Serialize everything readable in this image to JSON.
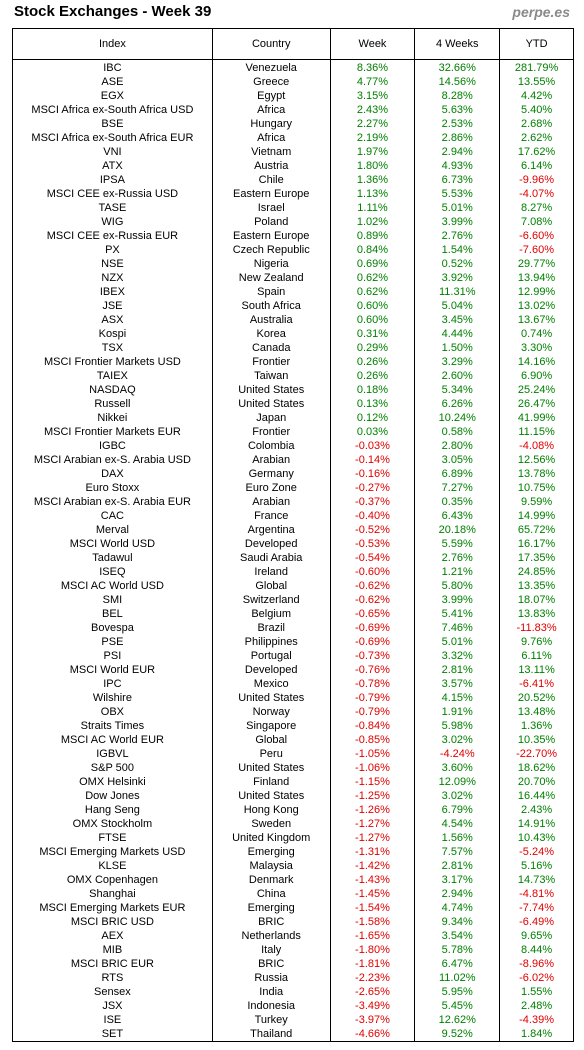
{
  "header": {
    "title": "Stock Exchanges - Week 39",
    "source": "perpe.es"
  },
  "table": {
    "columns": [
      "Index",
      "Country",
      "Week",
      "4 Weeks",
      "YTD"
    ],
    "rows": [
      [
        "IBC",
        "Venezuela",
        "8.36%",
        "32.66%",
        "281.79%"
      ],
      [
        "ASE",
        "Greece",
        "4.77%",
        "14.56%",
        "13.55%"
      ],
      [
        "EGX",
        "Egypt",
        "3.15%",
        "8.28%",
        "4.42%"
      ],
      [
        "MSCI Africa ex-South Africa USD",
        "Africa",
        "2.43%",
        "5.63%",
        "5.40%"
      ],
      [
        "BSE",
        "Hungary",
        "2.27%",
        "2.53%",
        "2.68%"
      ],
      [
        "MSCI Africa ex-South Africa EUR",
        "Africa",
        "2.19%",
        "2.86%",
        "2.62%"
      ],
      [
        "VNI",
        "Vietnam",
        "1.97%",
        "2.94%",
        "17.62%"
      ],
      [
        "ATX",
        "Austria",
        "1.80%",
        "4.93%",
        "6.14%"
      ],
      [
        "IPSA",
        "Chile",
        "1.36%",
        "6.73%",
        "-9.96%"
      ],
      [
        "MSCI CEE ex-Russia USD",
        "Eastern Europe",
        "1.13%",
        "5.53%",
        "-4.07%"
      ],
      [
        "TASE",
        "Israel",
        "1.11%",
        "5.01%",
        "8.27%"
      ],
      [
        "WIG",
        "Poland",
        "1.02%",
        "3.99%",
        "7.08%"
      ],
      [
        "MSCI CEE ex-Russia EUR",
        "Eastern Europe",
        "0.89%",
        "2.76%",
        "-6.60%"
      ],
      [
        "PX",
        "Czech Republic",
        "0.84%",
        "1.54%",
        "-7.60%"
      ],
      [
        "NSE",
        "Nigeria",
        "0.69%",
        "0.52%",
        "29.77%"
      ],
      [
        "NZX",
        "New Zealand",
        "0.62%",
        "3.92%",
        "13.94%"
      ],
      [
        "IBEX",
        "Spain",
        "0.62%",
        "11.31%",
        "12.99%"
      ],
      [
        "JSE",
        "South Africa",
        "0.60%",
        "5.04%",
        "13.02%"
      ],
      [
        "ASX",
        "Australia",
        "0.60%",
        "3.45%",
        "13.67%"
      ],
      [
        "Kospi",
        "Korea",
        "0.31%",
        "4.44%",
        "0.74%"
      ],
      [
        "TSX",
        "Canada",
        "0.29%",
        "1.50%",
        "3.30%"
      ],
      [
        "MSCI Frontier Markets USD",
        "Frontier",
        "0.26%",
        "3.29%",
        "14.16%"
      ],
      [
        "TAIEX",
        "Taiwan",
        "0.26%",
        "2.60%",
        "6.90%"
      ],
      [
        "NASDAQ",
        "United States",
        "0.18%",
        "5.34%",
        "25.24%"
      ],
      [
        "Russell",
        "United States",
        "0.13%",
        "6.26%",
        "26.47%"
      ],
      [
        "Nikkei",
        "Japan",
        "0.12%",
        "10.24%",
        "41.99%"
      ],
      [
        "MSCI Frontier Markets EUR",
        "Frontier",
        "0.03%",
        "0.58%",
        "11.15%"
      ],
      [
        "IGBC",
        "Colombia",
        "-0.03%",
        "2.80%",
        "-4.08%"
      ],
      [
        "MSCI Arabian ex-S. Arabia USD",
        "Arabian",
        "-0.14%",
        "3.05%",
        "12.56%"
      ],
      [
        "DAX",
        "Germany",
        "-0.16%",
        "6.89%",
        "13.78%"
      ],
      [
        "Euro Stoxx",
        "Euro Zone",
        "-0.27%",
        "7.27%",
        "10.75%"
      ],
      [
        "MSCI Arabian ex-S. Arabia EUR",
        "Arabian",
        "-0.37%",
        "0.35%",
        "9.59%"
      ],
      [
        "CAC",
        "France",
        "-0.40%",
        "6.43%",
        "14.99%"
      ],
      [
        "Merval",
        "Argentina",
        "-0.52%",
        "20.18%",
        "65.72%"
      ],
      [
        "MSCI World USD",
        "Developed",
        "-0.53%",
        "5.59%",
        "16.17%"
      ],
      [
        "Tadawul",
        "Saudi Arabia",
        "-0.54%",
        "2.76%",
        "17.35%"
      ],
      [
        "ISEQ",
        "Ireland",
        "-0.60%",
        "1.21%",
        "24.85%"
      ],
      [
        "MSCI AC World USD",
        "Global",
        "-0.62%",
        "5.80%",
        "13.35%"
      ],
      [
        "SMI",
        "Switzerland",
        "-0.62%",
        "3.99%",
        "18.07%"
      ],
      [
        "BEL",
        "Belgium",
        "-0.65%",
        "5.41%",
        "13.83%"
      ],
      [
        "Bovespa",
        "Brazil",
        "-0.69%",
        "7.46%",
        "-11.83%"
      ],
      [
        "PSE",
        "Philippines",
        "-0.69%",
        "5.01%",
        "9.76%"
      ],
      [
        "PSI",
        "Portugal",
        "-0.73%",
        "3.32%",
        "6.11%"
      ],
      [
        "MSCI World EUR",
        "Developed",
        "-0.76%",
        "2.81%",
        "13.11%"
      ],
      [
        "IPC",
        "Mexico",
        "-0.78%",
        "3.57%",
        "-6.41%"
      ],
      [
        "Wilshire",
        "United States",
        "-0.79%",
        "4.15%",
        "20.52%"
      ],
      [
        "OBX",
        "Norway",
        "-0.79%",
        "1.91%",
        "13.48%"
      ],
      [
        "Straits Times",
        "Singapore",
        "-0.84%",
        "5.98%",
        "1.36%"
      ],
      [
        "MSCI AC World EUR",
        "Global",
        "-0.85%",
        "3.02%",
        "10.35%"
      ],
      [
        "IGBVL",
        "Peru",
        "-1.05%",
        "-4.24%",
        "-22.70%"
      ],
      [
        "S&P 500",
        "United States",
        "-1.06%",
        "3.60%",
        "18.62%"
      ],
      [
        "OMX Helsinki",
        "Finland",
        "-1.15%",
        "12.09%",
        "20.70%"
      ],
      [
        "Dow Jones",
        "United States",
        "-1.25%",
        "3.02%",
        "16.44%"
      ],
      [
        "Hang Seng",
        "Hong Kong",
        "-1.26%",
        "6.79%",
        "2.43%"
      ],
      [
        "OMX Stockholm",
        "Sweden",
        "-1.27%",
        "4.54%",
        "14.91%"
      ],
      [
        "FTSE",
        "United Kingdom",
        "-1.27%",
        "1.56%",
        "10.43%"
      ],
      [
        "MSCI Emerging Markets USD",
        "Emerging",
        "-1.31%",
        "7.57%",
        "-5.24%"
      ],
      [
        "KLSE",
        "Malaysia",
        "-1.42%",
        "2.81%",
        "5.16%"
      ],
      [
        "OMX Copenhagen",
        "Denmark",
        "-1.43%",
        "3.17%",
        "14.73%"
      ],
      [
        "Shanghai",
        "China",
        "-1.45%",
        "2.94%",
        "-4.81%"
      ],
      [
        "MSCI Emerging Markets EUR",
        "Emerging",
        "-1.54%",
        "4.74%",
        "-7.74%"
      ],
      [
        "MSCI BRIC USD",
        "BRIC",
        "-1.58%",
        "9.34%",
        "-6.49%"
      ],
      [
        "AEX",
        "Netherlands",
        "-1.65%",
        "3.54%",
        "9.65%"
      ],
      [
        "MIB",
        "Italy",
        "-1.80%",
        "5.78%",
        "8.44%"
      ],
      [
        "MSCI BRIC EUR",
        "BRIC",
        "-1.81%",
        "6.47%",
        "-8.96%"
      ],
      [
        "RTS",
        "Russia",
        "-2.23%",
        "11.02%",
        "-6.02%"
      ],
      [
        "Sensex",
        "India",
        "-2.65%",
        "5.95%",
        "1.55%"
      ],
      [
        "JSX",
        "Indonesia",
        "-3.49%",
        "5.45%",
        "2.48%"
      ],
      [
        "ISE",
        "Turkey",
        "-3.97%",
        "12.62%",
        "-4.39%"
      ],
      [
        "SET",
        "Thailand",
        "-4.66%",
        "9.52%",
        "1.84%"
      ]
    ]
  }
}
